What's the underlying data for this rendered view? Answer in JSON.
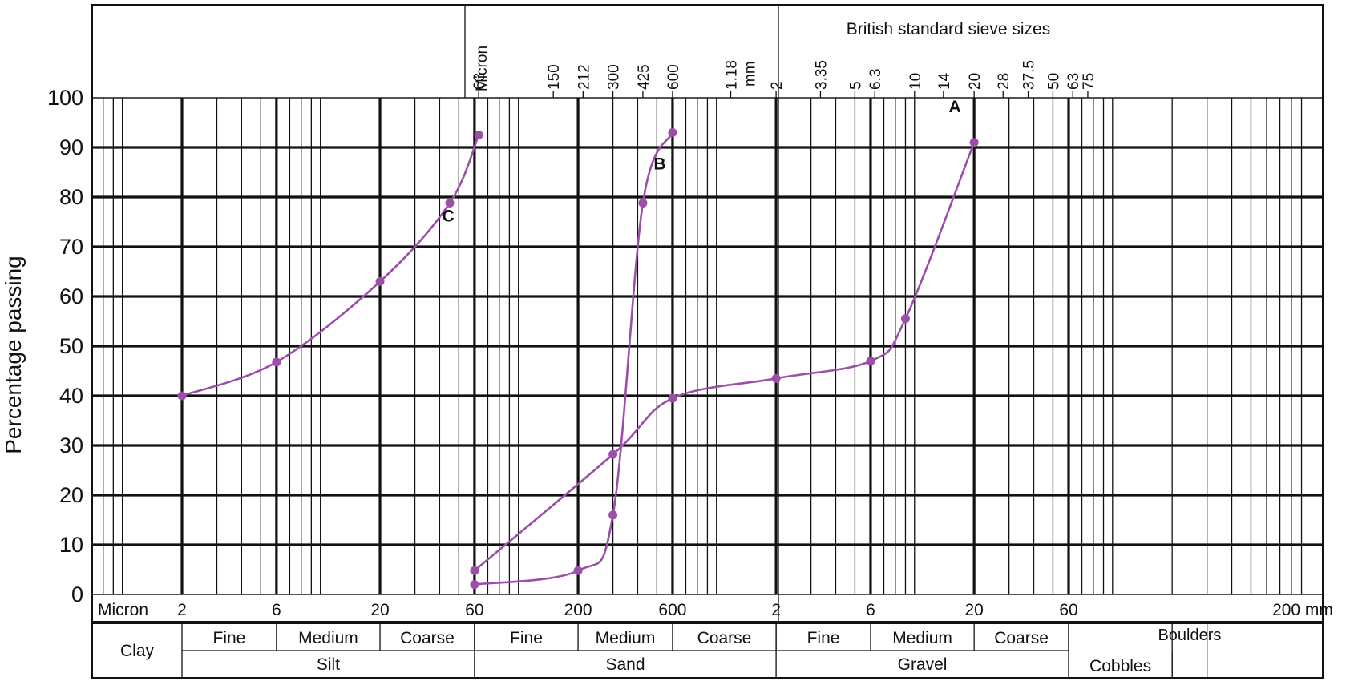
{
  "chart_data": {
    "type": "line",
    "title": "",
    "xlabel": "",
    "ylabel": "Percentage passing",
    "x_scale": "log",
    "x_unit": "mm",
    "xlim": [
      0.001,
      300
    ],
    "ylim": [
      0,
      100
    ],
    "y_ticks": [
      "0",
      "10",
      "20",
      "30",
      "40",
      "50",
      "60",
      "70",
      "80",
      "90",
      "100"
    ],
    "grid": true,
    "line_color": "#9b4fa8",
    "sieve_header": {
      "title": "British standard sieve sizes",
      "micron_label": "Micron",
      "mm_label": "mm",
      "micron_sizes": [
        {
          "label": "63",
          "value": 0.063
        },
        {
          "label": "150",
          "value": 0.15
        },
        {
          "label": "212",
          "value": 0.212
        },
        {
          "label": "300",
          "value": 0.3
        },
        {
          "label": "425",
          "value": 0.425
        },
        {
          "label": "600",
          "value": 0.6
        }
      ],
      "mm_sizes": [
        {
          "label": "1.18",
          "value": 1.18
        },
        {
          "label": "2",
          "value": 2
        },
        {
          "label": "3.35",
          "value": 3.35
        },
        {
          "label": "5",
          "value": 5
        },
        {
          "label": "6.3",
          "value": 6.3
        },
        {
          "label": "10",
          "value": 10
        },
        {
          "label": "14",
          "value": 14
        },
        {
          "label": "20",
          "value": 20
        },
        {
          "label": "28",
          "value": 28
        },
        {
          "label": "37.5",
          "value": 37.5
        },
        {
          "label": "50",
          "value": 50
        },
        {
          "label": "63",
          "value": 63
        },
        {
          "label": "75",
          "value": 75
        }
      ]
    },
    "bottom_axis": {
      "micron_label": "Micron",
      "mm_label": "200 mm",
      "ticks": [
        {
          "label": "2",
          "value": 0.002
        },
        {
          "label": "6",
          "value": 0.006
        },
        {
          "label": "20",
          "value": 0.02
        },
        {
          "label": "60",
          "value": 0.06
        },
        {
          "label": "200",
          "value": 0.2
        },
        {
          "label": "600",
          "value": 0.6
        },
        {
          "label": "2",
          "value": 2
        },
        {
          "label": "6",
          "value": 6
        },
        {
          "label": "20",
          "value": 20
        },
        {
          "label": "60",
          "value": 60
        }
      ]
    },
    "classification": {
      "sub_bands": [
        {
          "label": "Fine",
          "from": 0.002,
          "to": 0.006
        },
        {
          "label": "Medium",
          "from": 0.006,
          "to": 0.02
        },
        {
          "label": "Coarse",
          "from": 0.02,
          "to": 0.06
        },
        {
          "label": "Fine",
          "from": 0.06,
          "to": 0.2
        },
        {
          "label": "Medium",
          "from": 0.2,
          "to": 0.6
        },
        {
          "label": "Coarse",
          "from": 0.6,
          "to": 2
        },
        {
          "label": "Fine",
          "from": 2,
          "to": 6
        },
        {
          "label": "Medium",
          "from": 6,
          "to": 20
        },
        {
          "label": "Coarse",
          "from": 20,
          "to": 60
        }
      ],
      "main_bands": [
        {
          "label": "Clay",
          "from": 0.0005,
          "to": 0.002
        },
        {
          "label": "Silt",
          "from": 0.002,
          "to": 0.06
        },
        {
          "label": "Sand",
          "from": 0.06,
          "to": 2
        },
        {
          "label": "Gravel",
          "from": 2,
          "to": 60
        },
        {
          "label": "Cobbles",
          "from": 60,
          "to": 200
        },
        {
          "label": "Boulders",
          "from": 200,
          "to": 300
        }
      ]
    },
    "series": [
      {
        "name": "A",
        "points": [
          [
            0.06,
            4.8
          ],
          [
            0.3,
            28.2
          ],
          [
            0.6,
            39.5
          ],
          [
            2,
            43.5
          ],
          [
            6,
            47
          ],
          [
            9,
            55.5
          ],
          [
            20,
            91
          ]
        ]
      },
      {
        "name": "B",
        "points": [
          [
            0.06,
            2
          ],
          [
            0.2,
            4.8
          ],
          [
            0.3,
            16
          ],
          [
            0.425,
            78.8
          ],
          [
            0.6,
            93
          ]
        ]
      },
      {
        "name": "C",
        "points": [
          [
            0.002,
            40
          ],
          [
            0.006,
            46.8
          ],
          [
            0.02,
            63
          ],
          [
            0.045,
            78.8
          ],
          [
            0.063,
            92.5
          ]
        ]
      }
    ]
  }
}
